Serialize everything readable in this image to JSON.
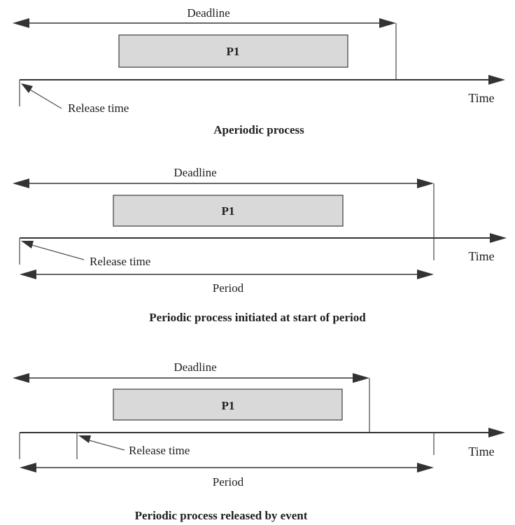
{
  "diagrams": [
    {
      "deadline_label": "Deadline",
      "process_label": "P1",
      "axis_label": "Time",
      "release_label": "Release time",
      "period_label": "",
      "caption": "Aperiodic process"
    },
    {
      "deadline_label": "Deadline",
      "process_label": "P1",
      "axis_label": "Time",
      "release_label": "Release time",
      "period_label": "Period",
      "caption": "Periodic process initiated at start of period"
    },
    {
      "deadline_label": "Deadline",
      "process_label": "P1",
      "axis_label": "Time",
      "release_label": "Release time",
      "period_label": "Period",
      "caption": "Periodic process released by event"
    }
  ],
  "colors": {
    "process_fill": "#d9d9d9",
    "line": "#333333"
  }
}
